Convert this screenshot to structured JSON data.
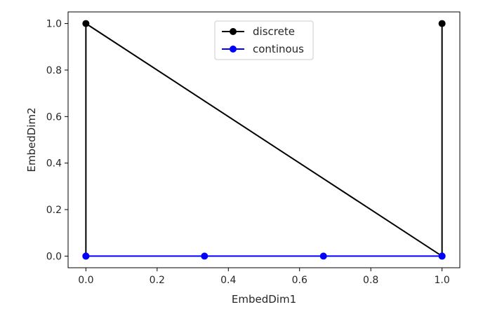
{
  "chart_data": {
    "type": "line",
    "title": "",
    "xlabel": "EmbedDim1",
    "ylabel": "EmbedDim2",
    "xlim": [
      -0.05,
      1.05
    ],
    "ylim": [
      -0.05,
      1.05
    ],
    "xticks": [
      0.0,
      0.2,
      0.4,
      0.6,
      0.8,
      1.0
    ],
    "xtick_labels": [
      "0.0",
      "0.2",
      "0.4",
      "0.6",
      "0.8",
      "1.0"
    ],
    "yticks": [
      0.0,
      0.2,
      0.4,
      0.6,
      0.8,
      1.0
    ],
    "ytick_labels": [
      "0.0",
      "0.2",
      "0.4",
      "0.6",
      "0.8",
      "1.0"
    ],
    "grid": false,
    "legend_position": "upper center",
    "series": [
      {
        "name": "discrete",
        "color": "#000000",
        "marker": "circle",
        "x": [
          0.0,
          0.0,
          1.0,
          1.0
        ],
        "y": [
          0.0,
          1.0,
          0.0,
          1.0
        ]
      },
      {
        "name": "continous",
        "color": "#0000ff",
        "marker": "circle",
        "x": [
          0.0,
          0.333,
          0.667,
          1.0
        ],
        "y": [
          0.0,
          0.0,
          0.0,
          0.0
        ]
      }
    ]
  }
}
